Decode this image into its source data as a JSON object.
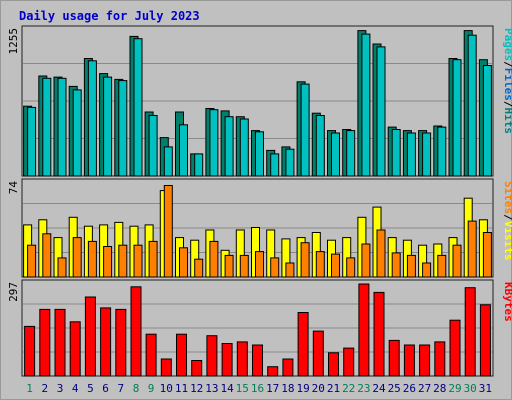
{
  "chart_data": {
    "type": "bar",
    "title": "Daily usage for July 2023",
    "categories": [
      "1",
      "2",
      "3",
      "4",
      "5",
      "6",
      "7",
      "8",
      "9",
      "10",
      "11",
      "12",
      "13",
      "14",
      "15",
      "16",
      "17",
      "18",
      "19",
      "20",
      "21",
      "22",
      "23",
      "24",
      "25",
      "26",
      "27",
      "28",
      "29",
      "30",
      "31"
    ],
    "weekend_days": [
      "1",
      "8",
      "9",
      "15",
      "16",
      "22",
      "23",
      "29",
      "30"
    ],
    "grid": true,
    "panels": [
      {
        "ymax_label": "1255",
        "ylim": [
          0,
          1255
        ],
        "legend_labels": [
          "Pages",
          "/",
          "Files",
          "/",
          "Hits"
        ],
        "legend_colors": [
          "#00c0c0",
          "#000000",
          "#0066cc",
          "#000000",
          "#008080"
        ],
        "series": [
          {
            "name": "Hits",
            "color": "#00806b",
            "values": [
              600,
              860,
              850,
              770,
              1010,
              880,
              830,
              1200,
              550,
              330,
              550,
              190,
              580,
              560,
              510,
              390,
              220,
              250,
              810,
              540,
              390,
              400,
              1250,
              1135,
              420,
              390,
              390,
              430,
              1010,
              1250,
              1000
            ]
          },
          {
            "name": "Files",
            "color": "#00c0c0",
            "values": [
              590,
              840,
              840,
              740,
              990,
              850,
              820,
              1180,
              520,
              250,
              440,
              190,
              570,
              510,
              490,
              380,
              190,
              230,
              790,
              520,
              370,
              390,
              1220,
              1110,
              400,
              370,
              370,
              420,
              1000,
              1210,
              950
            ]
          }
        ]
      },
      {
        "ymax_label": "74",
        "ylim": [
          0,
          74
        ],
        "legend_labels": [
          "Sites",
          "/",
          "Visits"
        ],
        "legend_colors": [
          "#ff8000",
          "#000000",
          "#ffff00"
        ],
        "series": [
          {
            "name": "Visits",
            "color": "#ffff00",
            "values": [
              41,
              45,
              31,
              47,
              40,
              41,
              43,
              40,
              41,
              68,
              31,
              29,
              37,
              21,
              37,
              39,
              37,
              30,
              31,
              35,
              29,
              31,
              47,
              55,
              31,
              29,
              25,
              26,
              31,
              62,
              45
            ]
          },
          {
            "name": "Sites",
            "color": "#ff8000",
            "values": [
              25,
              34,
              15,
              31,
              28,
              24,
              25,
              25,
              28,
              72,
              23,
              14,
              28,
              17,
              17,
              20,
              15,
              11,
              27,
              20,
              18,
              15,
              26,
              37,
              19,
              17,
              11,
              17,
              25,
              44,
              35
            ]
          }
        ]
      },
      {
        "ymax_label": "297",
        "ylim": [
          0,
          297
        ],
        "legend_labels": [
          "KBytes"
        ],
        "legend_colors": [
          "#ff0000"
        ],
        "series": [
          {
            "name": "KBytes",
            "color": "#ff0000",
            "values": [
              160,
              215,
              215,
              175,
              255,
              220,
              215,
              288,
              135,
              55,
              135,
              50,
              130,
              105,
              110,
              100,
              30,
              55,
              205,
              145,
              75,
              90,
              297,
              270,
              115,
              100,
              100,
              110,
              180,
              285,
              230
            ]
          }
        ]
      }
    ]
  }
}
